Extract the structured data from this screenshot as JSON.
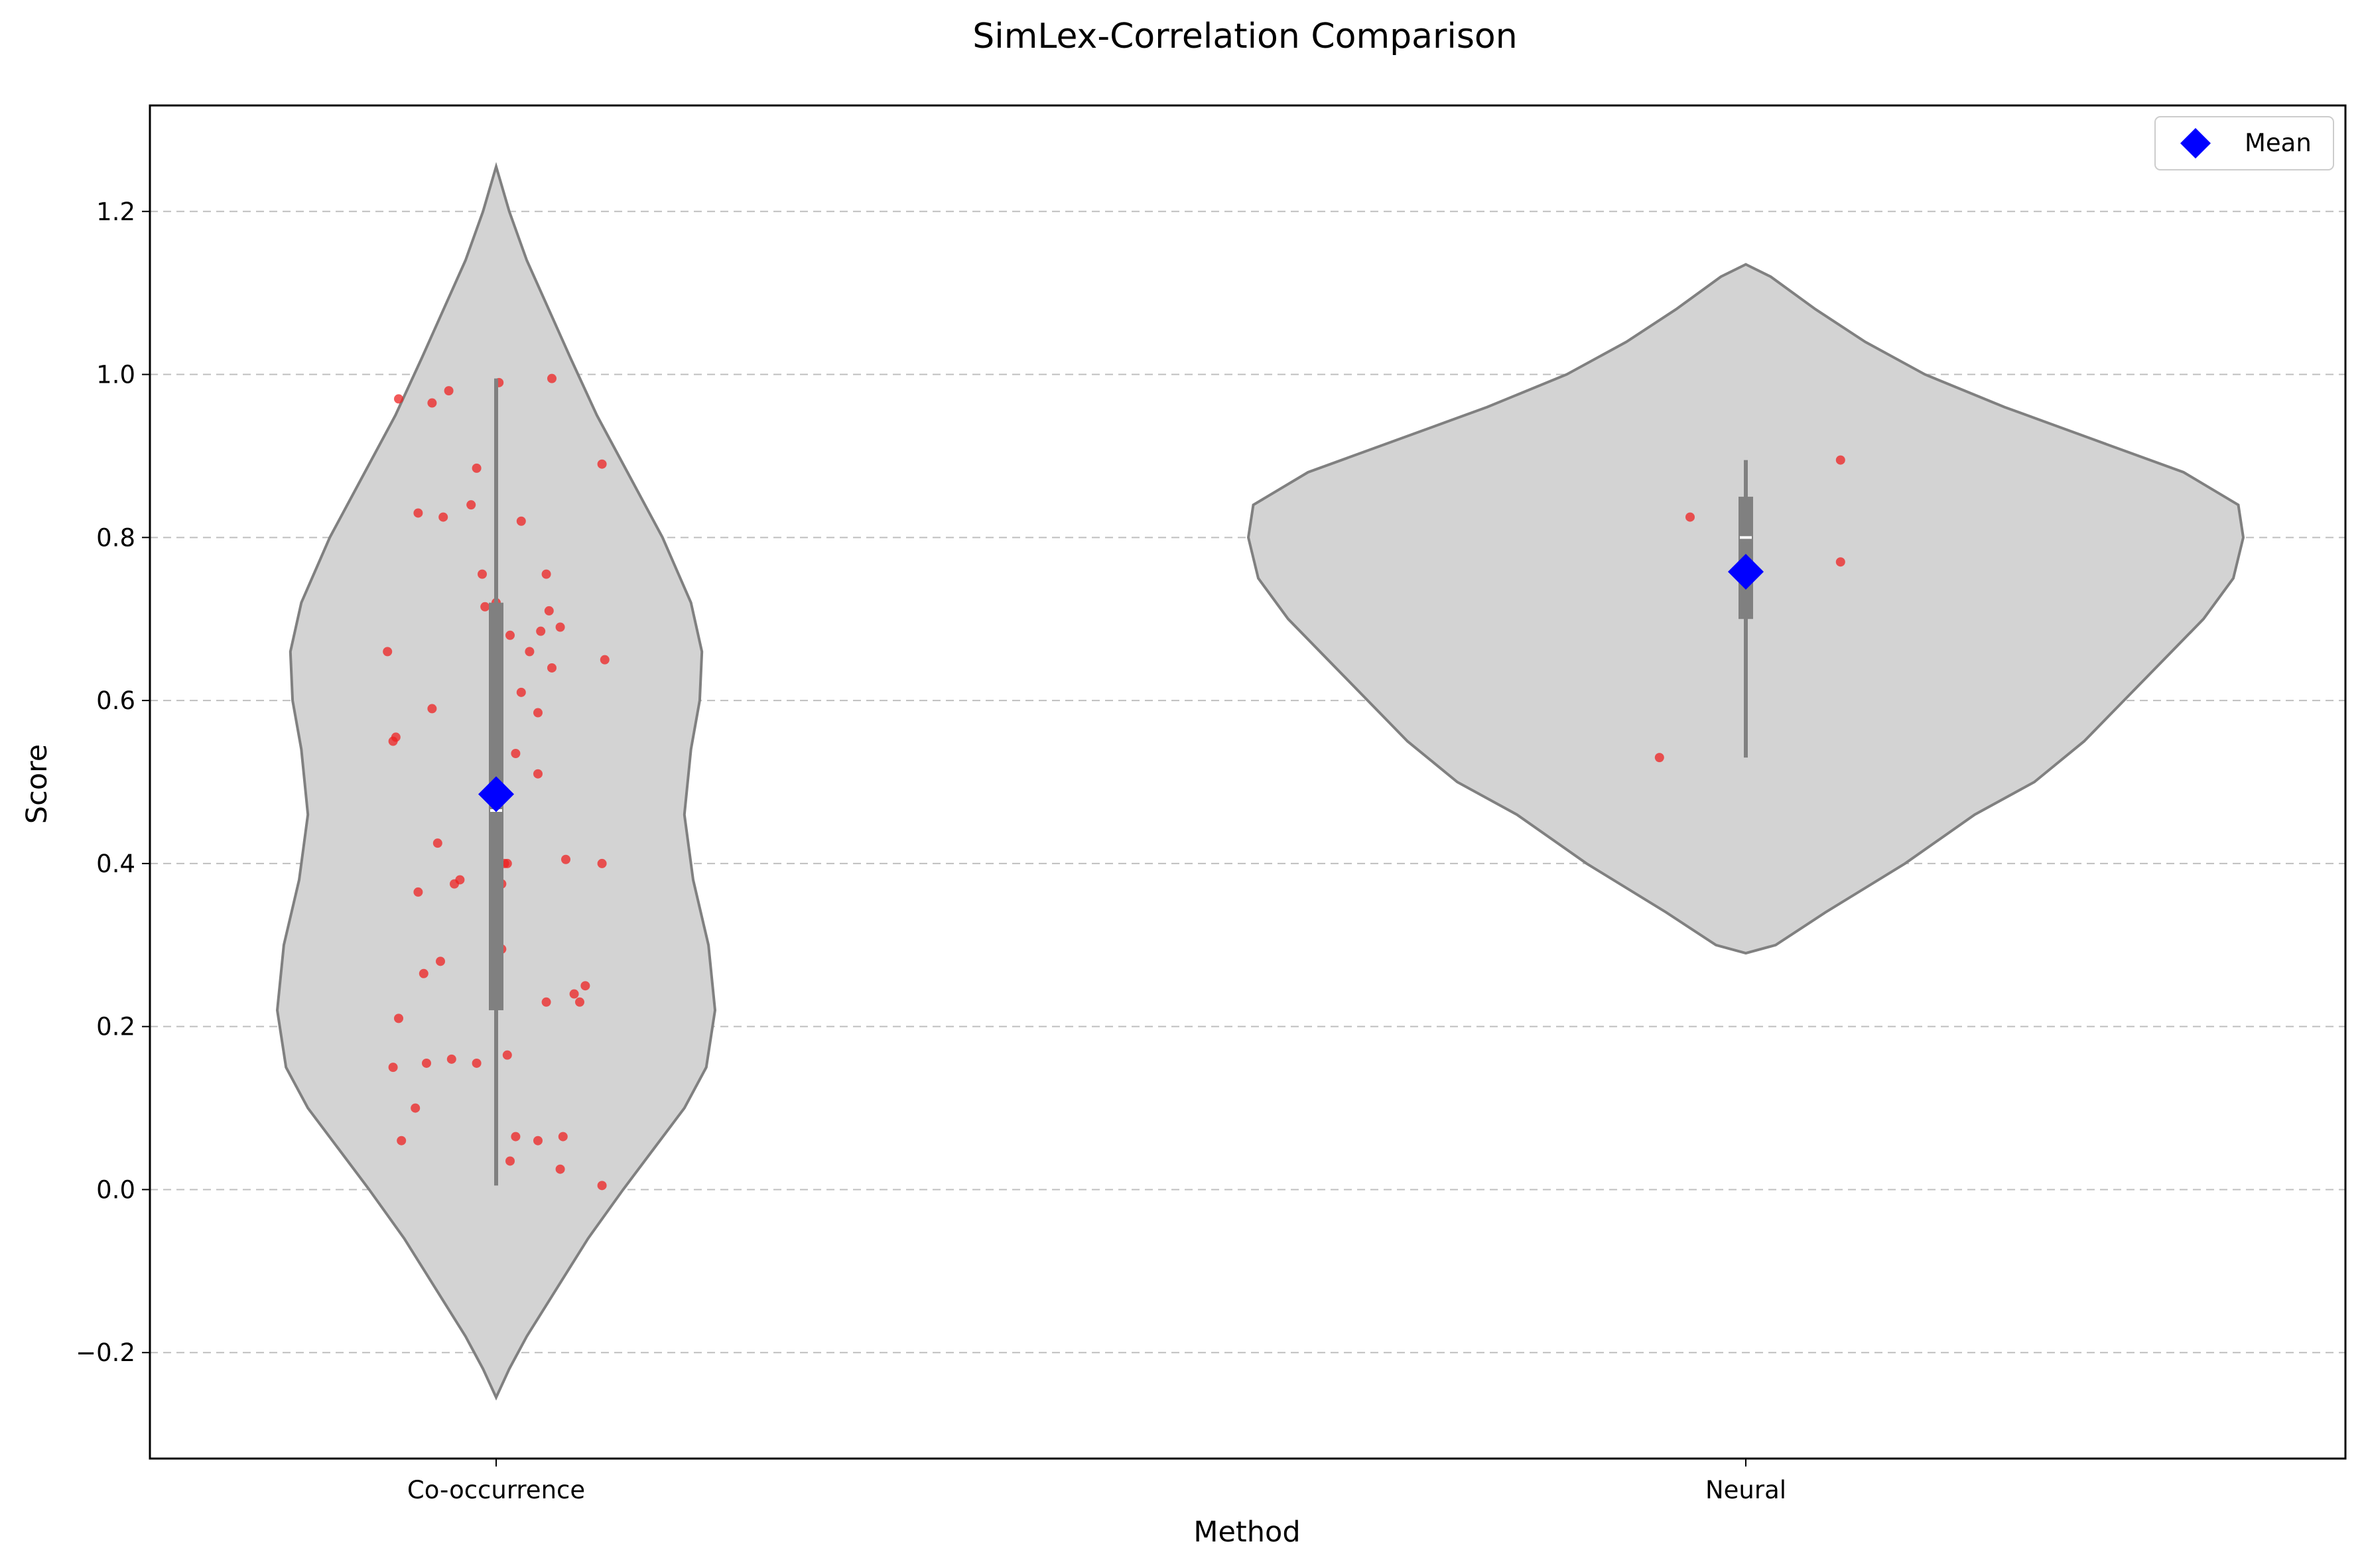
{
  "chart_data": {
    "type": "violin",
    "title": "SimLex-Correlation Comparison",
    "xlabel": "Method",
    "ylabel": "Score",
    "ylim": [
      -0.33,
      1.33
    ],
    "yticks": [
      -0.2,
      0.0,
      0.2,
      0.4,
      0.6,
      0.8,
      1.0,
      1.2
    ],
    "ytick_labels": [
      "−0.2",
      "0.0",
      "0.2",
      "0.4",
      "0.6",
      "0.8",
      "1.0",
      "1.2"
    ],
    "grid": "y-dashed",
    "legend": {
      "placement": "top-right",
      "entries": [
        {
          "label": "Mean",
          "marker": "diamond",
          "color": "#0000ff"
        }
      ]
    },
    "colors": {
      "violin_fill": "#d3d3d3",
      "violin_edge": "#808080",
      "points": "#ee2222",
      "mean": "#0000ff",
      "box": "#808080"
    },
    "categories": [
      "Co-occurrence",
      "Neural"
    ],
    "groups": [
      {
        "name": "Co-occurrence",
        "mean": 0.485,
        "median": 0.465,
        "q1": 0.22,
        "q3": 0.72,
        "whisker_low": 0.005,
        "whisker_high": 0.995,
        "violin_profile": [
          [
            -0.255,
            0.0
          ],
          [
            -0.22,
            0.06
          ],
          [
            -0.18,
            0.14
          ],
          [
            -0.12,
            0.28
          ],
          [
            -0.06,
            0.42
          ],
          [
            0.0,
            0.58
          ],
          [
            0.05,
            0.72
          ],
          [
            0.1,
            0.86
          ],
          [
            0.15,
            0.96
          ],
          [
            0.22,
            1.0
          ],
          [
            0.3,
            0.97
          ],
          [
            0.38,
            0.9
          ],
          [
            0.46,
            0.86
          ],
          [
            0.54,
            0.89
          ],
          [
            0.6,
            0.93
          ],
          [
            0.66,
            0.94
          ],
          [
            0.72,
            0.89
          ],
          [
            0.8,
            0.76
          ],
          [
            0.88,
            0.6
          ],
          [
            0.95,
            0.46
          ],
          [
            1.02,
            0.34
          ],
          [
            1.08,
            0.24
          ],
          [
            1.14,
            0.14
          ],
          [
            1.2,
            0.06
          ],
          [
            1.255,
            0.0
          ]
        ],
        "points": [
          [
            -0.39,
            0.66
          ],
          [
            -0.37,
            0.55
          ],
          [
            -0.36,
            0.555
          ],
          [
            -0.35,
            0.97
          ],
          [
            -0.35,
            0.21
          ],
          [
            -0.37,
            0.15
          ],
          [
            -0.34,
            0.06
          ],
          [
            -0.28,
            0.83
          ],
          [
            -0.28,
            0.365
          ],
          [
            -0.26,
            0.265
          ],
          [
            -0.25,
            0.155
          ],
          [
            -0.29,
            0.1
          ],
          [
            -0.23,
            0.965
          ],
          [
            -0.23,
            0.59
          ],
          [
            -0.21,
            0.425
          ],
          [
            -0.2,
            0.28
          ],
          [
            -0.19,
            0.825
          ],
          [
            -0.17,
            0.98
          ],
          [
            -0.16,
            0.16
          ],
          [
            -0.15,
            0.375
          ],
          [
            -0.13,
            0.38
          ],
          [
            -0.09,
            0.84
          ],
          [
            -0.07,
            0.885
          ],
          [
            -0.05,
            0.755
          ],
          [
            -0.04,
            0.715
          ],
          [
            -0.07,
            0.155
          ],
          [
            0.0,
            0.72
          ],
          [
            0.01,
            0.99
          ],
          [
            0.02,
            0.375
          ],
          [
            0.02,
            0.295
          ],
          [
            0.03,
            0.4
          ],
          [
            0.04,
            0.4
          ],
          [
            0.04,
            0.165
          ],
          [
            0.05,
            0.68
          ],
          [
            0.05,
            0.035
          ],
          [
            0.07,
            0.535
          ],
          [
            0.07,
            0.065
          ],
          [
            0.09,
            0.82
          ],
          [
            0.09,
            0.61
          ],
          [
            0.12,
            0.66
          ],
          [
            0.15,
            0.585
          ],
          [
            0.15,
            0.51
          ],
          [
            0.15,
            0.06
          ],
          [
            0.16,
            0.685
          ],
          [
            0.18,
            0.755
          ],
          [
            0.18,
            0.23
          ],
          [
            0.19,
            0.71
          ],
          [
            0.2,
            0.995
          ],
          [
            0.2,
            0.64
          ],
          [
            0.23,
            0.69
          ],
          [
            0.23,
            0.025
          ],
          [
            0.24,
            0.065
          ],
          [
            0.25,
            0.405
          ],
          [
            0.28,
            0.24
          ],
          [
            0.3,
            0.23
          ],
          [
            0.32,
            0.25
          ],
          [
            0.38,
            0.4
          ],
          [
            0.38,
            0.005
          ],
          [
            0.38,
            0.89
          ],
          [
            0.39,
            0.65
          ]
        ]
      },
      {
        "name": "Neural",
        "mean": 0.758,
        "median": 0.8,
        "q1": 0.7,
        "q3": 0.85,
        "whisker_low": 0.53,
        "whisker_high": 0.895,
        "violin_profile": [
          [
            0.29,
            0.0
          ],
          [
            0.3,
            0.06
          ],
          [
            0.34,
            0.16
          ],
          [
            0.4,
            0.32
          ],
          [
            0.46,
            0.46
          ],
          [
            0.5,
            0.58
          ],
          [
            0.55,
            0.68
          ],
          [
            0.6,
            0.76
          ],
          [
            0.65,
            0.84
          ],
          [
            0.7,
            0.92
          ],
          [
            0.75,
            0.98
          ],
          [
            0.8,
            1.0
          ],
          [
            0.84,
            0.99
          ],
          [
            0.88,
            0.88
          ],
          [
            0.92,
            0.7
          ],
          [
            0.96,
            0.52
          ],
          [
            1.0,
            0.36
          ],
          [
            1.04,
            0.24
          ],
          [
            1.08,
            0.14
          ],
          [
            1.12,
            0.05
          ],
          [
            1.135,
            0.0
          ]
        ],
        "points": [
          [
            -0.31,
            0.53
          ],
          [
            -0.2,
            0.825
          ],
          [
            0.34,
            0.77
          ],
          [
            0.34,
            0.895
          ]
        ]
      }
    ]
  }
}
